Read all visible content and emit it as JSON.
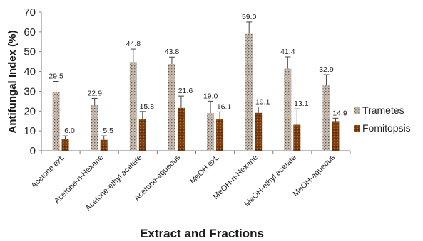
{
  "chart_data": {
    "type": "bar",
    "title": "",
    "xlabel": "Extract and Fractions",
    "ylabel": "Antifungal Index (%)",
    "ylim": [
      0,
      70
    ],
    "yticks": [
      "0",
      "10",
      "20",
      "30",
      "40",
      "50",
      "60",
      "70"
    ],
    "grid": false,
    "legend_position": "right",
    "error_bars": true,
    "categories": [
      "Acetone ext.",
      "Acetone-n-Hexane",
      "Acetone-ethyl acetate",
      "Acetone-aqueous",
      "MeOH ext.",
      "MeOH-n-Hexane",
      "MeOH-ethyl acetate",
      "MeOH-aqueous"
    ],
    "series": [
      {
        "name": "Trametes",
        "color": "#b5a79a",
        "values": [
          29.5,
          22.9,
          44.8,
          43.8,
          19.0,
          59.0,
          41.4,
          32.9
        ],
        "labels": [
          "29.5",
          "22.9",
          "44.8",
          "43.8",
          "19.0",
          "59.0",
          "41.4",
          "32.9"
        ],
        "errors": [
          5.5,
          3.5,
          6.5,
          3.5,
          6.0,
          6.0,
          6.0,
          5.5
        ]
      },
      {
        "name": "Fomitopsis",
        "color": "#8a4a1a",
        "values": [
          6.0,
          5.5,
          15.8,
          21.6,
          16.1,
          19.1,
          13.1,
          14.9
        ],
        "labels": [
          "6.0",
          "5.5",
          "15.8",
          "21.6",
          "16.1",
          "19.1",
          "13.1",
          "14.9"
        ],
        "errors": [
          1.5,
          2.0,
          4.0,
          6.0,
          3.5,
          3.0,
          8.0,
          1.5
        ]
      }
    ]
  }
}
